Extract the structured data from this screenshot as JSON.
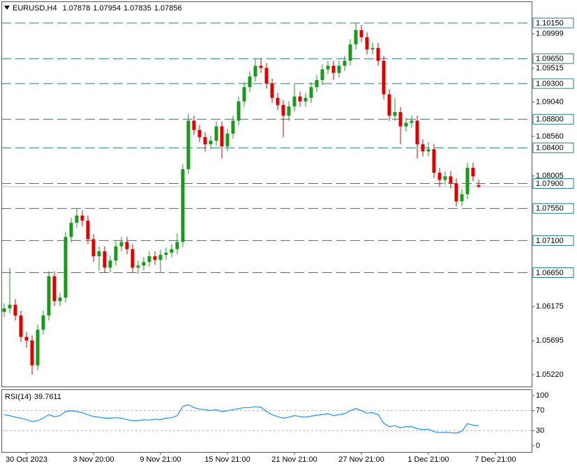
{
  "chart_data": [
    {
      "type": "candlestick",
      "title": "EURUSD,H4",
      "open": [
        1.061,
        1.0615,
        1.062,
        1.0605,
        1.0575,
        1.057,
        1.0535,
        1.0585,
        1.0605,
        1.066,
        1.0625,
        1.063,
        1.0715,
        1.0735,
        1.0745,
        1.0738,
        1.0712,
        1.0688,
        1.0695,
        1.0672,
        1.0682,
        1.0702,
        1.0708,
        1.0698,
        1.0672,
        1.0675,
        1.068,
        1.0688,
        1.0683,
        1.069,
        1.0693,
        1.0698,
        1.0708,
        1.081,
        1.0878,
        1.0865,
        1.0855,
        1.0845,
        1.085,
        1.087,
        1.0842,
        1.086,
        1.0878,
        1.0905,
        1.0925,
        1.094,
        1.0955,
        1.0952,
        1.093,
        1.091,
        1.09,
        1.0885,
        1.0898,
        1.0912,
        1.0905,
        1.091,
        1.0925,
        1.0935,
        1.095,
        1.0955,
        1.0945,
        1.0955,
        1.0962,
        1.0985,
        1.1005,
        1.0995,
        1.0978,
        1.098,
        1.0962,
        1.0915,
        1.0885,
        1.089,
        1.087,
        1.0875,
        1.0878,
        1.0845,
        1.0835,
        1.0838,
        1.0805,
        1.0795,
        1.08,
        1.079,
        1.0765,
        1.0775,
        1.0812,
        1.07878
      ],
      "high": [
        1.0622,
        1.0672,
        1.0628,
        1.0612,
        1.0582,
        1.0577,
        1.0592,
        1.0612,
        1.0667,
        1.0667,
        1.0637,
        1.0722,
        1.0742,
        1.0755,
        1.0752,
        1.0745,
        1.0719,
        1.0702,
        1.0702,
        1.0689,
        1.0709,
        1.0715,
        1.0715,
        1.0705,
        1.0682,
        1.0687,
        1.0695,
        1.0695,
        1.0697,
        1.07,
        1.0705,
        1.072,
        1.0817,
        1.0888,
        1.0885,
        1.0872,
        1.0862,
        1.0857,
        1.0877,
        1.0877,
        1.0867,
        1.0885,
        1.0912,
        1.0932,
        1.0947,
        1.0965,
        1.0965,
        1.0959,
        1.0937,
        1.0917,
        1.0907,
        1.0905,
        1.093,
        1.0919,
        1.0917,
        1.0932,
        1.0942,
        1.0957,
        1.0962,
        1.0962,
        1.0962,
        1.0969,
        1.0992,
        1.1015,
        1.1012,
        1.1002,
        1.0987,
        1.0987,
        1.0969,
        1.0922,
        1.091,
        1.0897,
        1.0882,
        1.0885,
        1.0885,
        1.0852,
        1.0848,
        1.0845,
        1.0812,
        1.0807,
        1.0807,
        1.0797,
        1.0782,
        1.0819,
        1.0819,
        1.07954
      ],
      "low": [
        1.0603,
        1.0608,
        1.0598,
        1.0568,
        1.056,
        1.0522,
        1.0528,
        1.0578,
        1.0598,
        1.0618,
        1.0618,
        1.0623,
        1.0708,
        1.0728,
        1.073,
        1.0705,
        1.068,
        1.0668,
        1.0665,
        1.0665,
        1.0675,
        1.0695,
        1.0691,
        1.0665,
        1.0663,
        1.0668,
        1.0673,
        1.0676,
        1.0666,
        1.0683,
        1.0686,
        1.0691,
        1.0701,
        1.0803,
        1.0858,
        1.0848,
        1.0835,
        1.0838,
        1.0843,
        1.0825,
        1.0835,
        1.0853,
        1.0871,
        1.0898,
        1.0918,
        1.0933,
        1.0945,
        1.0923,
        1.0903,
        1.0893,
        1.0855,
        1.0878,
        1.0891,
        1.0898,
        1.0898,
        1.0903,
        1.0918,
        1.0928,
        1.0943,
        1.0935,
        1.0938,
        1.0948,
        1.0955,
        1.0978,
        1.0988,
        1.0971,
        1.0971,
        1.0955,
        1.0908,
        1.0878,
        1.0878,
        1.0845,
        1.0863,
        1.0868,
        1.0825,
        1.0828,
        1.0828,
        1.0798,
        1.0785,
        1.0788,
        1.0783,
        1.0758,
        1.0758,
        1.0768,
        1.0793,
        1.07835
      ],
      "close": [
        1.0615,
        1.062,
        1.0605,
        1.0575,
        1.057,
        1.0535,
        1.0585,
        1.0605,
        1.066,
        1.0625,
        1.063,
        1.0715,
        1.0735,
        1.0745,
        1.0738,
        1.0712,
        1.0688,
        1.0695,
        1.0672,
        1.0682,
        1.0702,
        1.0708,
        1.0698,
        1.0672,
        1.0675,
        1.068,
        1.0688,
        1.0683,
        1.069,
        1.0693,
        1.0698,
        1.0708,
        1.081,
        1.0878,
        1.0865,
        1.0855,
        1.0845,
        1.085,
        1.087,
        1.0842,
        1.086,
        1.0878,
        1.0905,
        1.0925,
        1.094,
        1.0955,
        1.0952,
        1.093,
        1.091,
        1.09,
        1.0885,
        1.0898,
        1.0912,
        1.0905,
        1.091,
        1.0925,
        1.0935,
        1.095,
        1.0955,
        1.0945,
        1.0955,
        1.0962,
        1.0985,
        1.1005,
        1.0995,
        1.0978,
        1.098,
        1.0962,
        1.0915,
        1.0885,
        1.089,
        1.087,
        1.0875,
        1.0878,
        1.0845,
        1.0835,
        1.0838,
        1.0805,
        1.0795,
        1.08,
        1.079,
        1.0765,
        1.0775,
        1.0812,
        1.08,
        1.07856
      ],
      "up_color": "#1a9a1a",
      "down_color": "#e00000",
      "xlim": [
        -0.5,
        94.5
      ],
      "xticks": [
        {
          "value": 4,
          "label": "30 Oct 2023"
        },
        {
          "value": 16,
          "label": "3 Nov 20:00"
        },
        {
          "value": 28,
          "label": "9 Nov 21:00"
        },
        {
          "value": 40,
          "label": "15 Nov 21:00"
        },
        {
          "value": 52,
          "label": "21 Nov 21:00"
        },
        {
          "value": 64,
          "label": "27 Nov 21:00"
        },
        {
          "value": 76,
          "label": "1 Dec 21:00"
        },
        {
          "value": 88,
          "label": "7 Dec 21:00"
        }
      ],
      "ylim": [
        1.05054,
        1.10472
      ],
      "yticks": [
        1.09999,
        1.09515,
        {
          "value": 1.0904,
          "label": "1.09040"
        },
        {
          "value": 1.0856,
          "label": "1.08560"
        },
        1.08005,
        1.06175,
        1.05695,
        {
          "value": 1.0522,
          "label": "1.05220"
        }
      ],
      "levels": [
        {
          "value": 1.1015,
          "label": "1.10150"
        },
        {
          "value": 1.0965,
          "label": "1.09650"
        },
        {
          "value": 1.093,
          "label": "1.09300"
        },
        {
          "value": 1.088,
          "label": "1.08800"
        },
        {
          "value": 1.084,
          "label": "1.08400"
        },
        {
          "value": 1.079,
          "label": "1.07900"
        },
        {
          "value": 1.0755,
          "label": "1.07550"
        },
        {
          "value": 1.071,
          "label": "1.07100"
        },
        {
          "value": 1.0665,
          "label": "1.06650"
        }
      ],
      "level_color": "#1f7f86"
    },
    {
      "type": "line",
      "title": "RSI(14)",
      "values": [
        62,
        60,
        57,
        55,
        52,
        48,
        50,
        55,
        62,
        58,
        60,
        68,
        70,
        68,
        66,
        62,
        58,
        57,
        55,
        55,
        56,
        55,
        52,
        50,
        50,
        52,
        51,
        53,
        52,
        55,
        56,
        60,
        78,
        82,
        76,
        73,
        72,
        70,
        72,
        68,
        70,
        72,
        74,
        76,
        76,
        78,
        77,
        68,
        62,
        58,
        55,
        57,
        60,
        58,
        57,
        59,
        61,
        62,
        64,
        60,
        62,
        64,
        70,
        74,
        70,
        65,
        66,
        62,
        45,
        38,
        40,
        36,
        38,
        38,
        34,
        32,
        33,
        28,
        26,
        27,
        26,
        25,
        29,
        44,
        41,
        39.7611
      ],
      "color": "#1e90ff",
      "ylim": [
        -12.5,
        112.5
      ],
      "yticks": [
        100,
        70,
        30,
        0
      ],
      "levels": [
        70,
        30
      ],
      "level_color": "#b8b8b8"
    }
  ]
}
